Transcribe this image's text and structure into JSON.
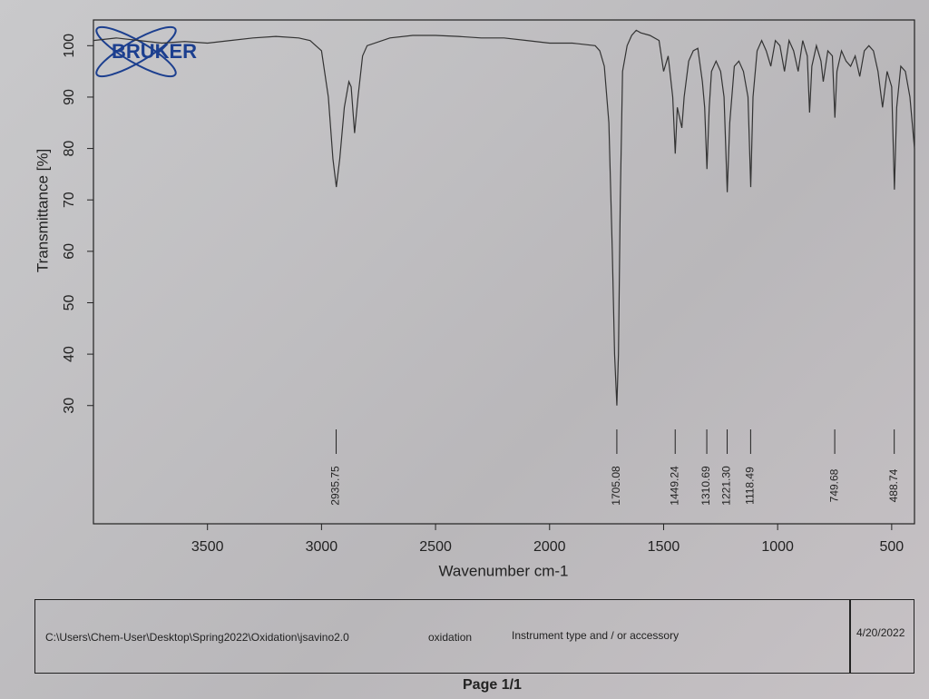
{
  "chart_data": {
    "type": "line",
    "logo": "BRUKER",
    "x_label": "Wavenumber cm-1",
    "y_label": "Transmittance [%]",
    "x": [
      4000,
      3900,
      3800,
      3700,
      3600,
      3500,
      3400,
      3300,
      3200,
      3100,
      3050,
      3000,
      2970,
      2950,
      2935,
      2920,
      2900,
      2880,
      2870,
      2855,
      2840,
      2820,
      2800,
      2700,
      2600,
      2500,
      2400,
      2300,
      2200,
      2100,
      2000,
      1900,
      1800,
      1780,
      1760,
      1740,
      1725,
      1715,
      1705,
      1698,
      1690,
      1680,
      1660,
      1640,
      1620,
      1600,
      1560,
      1520,
      1500,
      1480,
      1460,
      1449,
      1440,
      1420,
      1410,
      1390,
      1370,
      1350,
      1330,
      1320,
      1310,
      1300,
      1290,
      1270,
      1250,
      1235,
      1221,
      1210,
      1190,
      1170,
      1150,
      1130,
      1118,
      1108,
      1090,
      1070,
      1050,
      1030,
      1010,
      990,
      970,
      950,
      930,
      910,
      890,
      870,
      860,
      850,
      830,
      810,
      800,
      780,
      760,
      749,
      740,
      720,
      700,
      680,
      660,
      640,
      620,
      600,
      580,
      560,
      540,
      520,
      500,
      488,
      478,
      460,
      440,
      420,
      400
    ],
    "values": [
      101,
      101.5,
      101,
      100.5,
      100.8,
      100.5,
      101,
      101.5,
      101.8,
      101.5,
      101,
      99,
      90,
      78,
      72.5,
      78,
      88,
      93,
      92,
      83,
      90,
      98,
      100,
      101.5,
      102,
      102,
      101.8,
      101.5,
      101.5,
      101,
      100.5,
      100.5,
      100,
      99,
      96,
      85,
      60,
      40,
      30,
      40,
      70,
      95,
      100,
      102,
      103,
      102.5,
      102,
      101,
      95,
      98,
      90,
      79,
      88,
      84,
      90,
      97,
      99,
      99.5,
      93,
      88,
      76,
      88,
      95,
      97,
      95,
      90,
      71.5,
      85,
      96,
      97,
      95,
      90,
      72.5,
      90,
      99,
      101,
      99,
      96,
      101,
      100,
      95,
      101,
      99,
      95,
      101,
      98,
      87,
      96,
      100,
      97,
      93,
      99,
      98,
      86,
      95,
      99,
      97,
      96,
      98,
      94,
      99,
      100,
      99,
      95,
      88,
      95,
      92,
      72,
      88,
      96,
      95,
      90,
      80
    ],
    "color": "#333333",
    "xlim": [
      4000,
      400
    ],
    "ylim": [
      7,
      105
    ],
    "xticks": [
      3500,
      3000,
      2500,
      2000,
      1500,
      1000,
      500
    ],
    "yticks": [
      30,
      40,
      50,
      60,
      70,
      80,
      90,
      100
    ],
    "peaks": [
      2935.75,
      1705.08,
      1449.24,
      1310.69,
      1221.3,
      1118.49,
      749.68,
      488.74
    ],
    "peak_labels": [
      "2935.75",
      "1705.08",
      "1449.24",
      "1310.69",
      "1221.30",
      "1118.49",
      "749.68",
      "488.74"
    ]
  },
  "footer": {
    "path": "C:\\Users\\Chem-User\\Desktop\\Spring2022\\Oxidation\\jsavino2.0",
    "sample": "oxidation",
    "instrument": "Instrument type and / or accessory",
    "date": "4/20/2022",
    "page": "Page 1/1"
  }
}
